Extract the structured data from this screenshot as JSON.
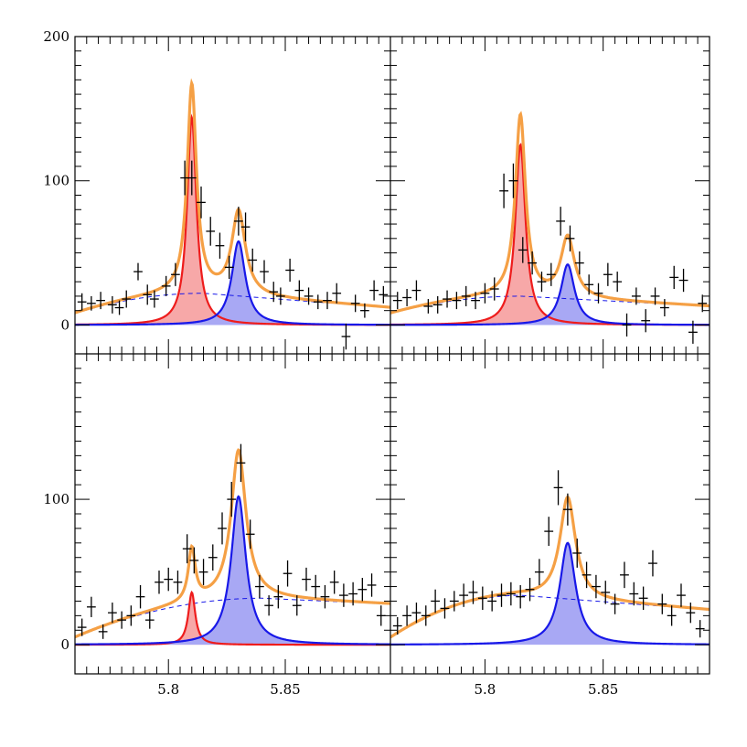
{
  "chart_data": {
    "type": "line",
    "layout": "2x2 grid of panels sharing x and y axes",
    "x_ticks": [
      5.8,
      5.85
    ],
    "x_tick_labels": [
      "5.8",
      "5.85"
    ],
    "x_range": [
      5.76,
      5.895
    ],
    "panels": [
      {
        "id": "top-left",
        "ylim": [
          -20,
          200
        ],
        "y_ticks": [
          0,
          100,
          200
        ],
        "y_tick_labels": [
          "0",
          "100",
          "200"
        ],
        "series": [
          {
            "name": "total fit",
            "color": "#f5a045"
          },
          {
            "name": "peak 1",
            "color": "#ee1c1c",
            "fill": "#f7a8a8",
            "center": 5.81,
            "width": 0.0024,
            "height": 144
          },
          {
            "name": "peak 2",
            "color": "#1818e8",
            "fill": "#a8a8f4",
            "center": 5.83,
            "width": 0.0035,
            "height": 58
          },
          {
            "name": "background",
            "color": "#1818e8",
            "style": "dashed",
            "y_at_left": 8,
            "y_peak": 22,
            "peak_x": 5.815,
            "y_at_right": 12
          }
        ],
        "data_points": [
          [
            5.763,
            16,
            6
          ],
          [
            5.767,
            15,
            5
          ],
          [
            5.771,
            17,
            6
          ],
          [
            5.776,
            14,
            6
          ],
          [
            5.779,
            12,
            5
          ],
          [
            5.782,
            18,
            6
          ],
          [
            5.787,
            37,
            6
          ],
          [
            5.791,
            21,
            7
          ],
          [
            5.794,
            18,
            6
          ],
          [
            5.799,
            27,
            7
          ],
          [
            5.803,
            35,
            8
          ],
          [
            5.807,
            102,
            12
          ],
          [
            5.81,
            102,
            12
          ],
          [
            5.814,
            85,
            11
          ],
          [
            5.818,
            65,
            10
          ],
          [
            5.822,
            55,
            9
          ],
          [
            5.826,
            40,
            8
          ],
          [
            5.83,
            72,
            10
          ],
          [
            5.833,
            68,
            10
          ],
          [
            5.836,
            45,
            8
          ],
          [
            5.841,
            37,
            8
          ],
          [
            5.845,
            23,
            7
          ],
          [
            5.848,
            20,
            6
          ],
          [
            5.852,
            38,
            8
          ],
          [
            5.856,
            24,
            7
          ],
          [
            5.86,
            20,
            6
          ],
          [
            5.864,
            16,
            5
          ],
          [
            5.868,
            17,
            6
          ],
          [
            5.872,
            22,
            7
          ],
          [
            5.876,
            -8,
            9
          ],
          [
            5.88,
            15,
            6
          ],
          [
            5.884,
            10,
            5
          ],
          [
            5.888,
            24,
            7
          ],
          [
            5.892,
            21,
            6
          ]
        ]
      },
      {
        "id": "top-right",
        "ylim": [
          -20,
          200
        ],
        "y_ticks": [
          0,
          100,
          200
        ],
        "series": [
          {
            "name": "total fit",
            "color": "#f5a045"
          },
          {
            "name": "peak 1",
            "color": "#ee1c1c",
            "fill": "#f7a8a8",
            "center": 5.815,
            "width": 0.0026,
            "height": 125
          },
          {
            "name": "peak 2",
            "color": "#1818e8",
            "fill": "#a8a8f4",
            "center": 5.835,
            "width": 0.0035,
            "height": 42
          },
          {
            "name": "background",
            "color": "#1818e8",
            "style": "dashed",
            "y_at_left": 8,
            "y_peak": 20,
            "peak_x": 5.815,
            "y_at_right": 13
          }
        ],
        "data_points": [
          [
            5.763,
            17,
            6
          ],
          [
            5.767,
            19,
            6
          ],
          [
            5.771,
            24,
            7
          ],
          [
            5.776,
            13,
            5
          ],
          [
            5.78,
            14,
            6
          ],
          [
            5.784,
            18,
            6
          ],
          [
            5.788,
            17,
            6
          ],
          [
            5.792,
            20,
            7
          ],
          [
            5.796,
            17,
            6
          ],
          [
            5.8,
            22,
            7
          ],
          [
            5.804,
            25,
            8
          ],
          [
            5.808,
            93,
            12
          ],
          [
            5.812,
            100,
            12
          ],
          [
            5.816,
            52,
            9
          ],
          [
            5.82,
            43,
            8
          ],
          [
            5.824,
            30,
            7
          ],
          [
            5.828,
            35,
            8
          ],
          [
            5.832,
            72,
            10
          ],
          [
            5.836,
            60,
            9
          ],
          [
            5.84,
            43,
            8
          ],
          [
            5.844,
            28,
            7
          ],
          [
            5.848,
            22,
            7
          ],
          [
            5.852,
            35,
            8
          ],
          [
            5.856,
            30,
            7
          ],
          [
            5.86,
            0,
            8
          ],
          [
            5.864,
            20,
            6
          ],
          [
            5.868,
            3,
            8
          ],
          [
            5.872,
            20,
            6
          ],
          [
            5.876,
            12,
            6
          ],
          [
            5.88,
            33,
            8
          ],
          [
            5.884,
            31,
            8
          ],
          [
            5.888,
            -5,
            8
          ],
          [
            5.892,
            15,
            6
          ]
        ]
      },
      {
        "id": "bottom-left",
        "ylim": [
          -20,
          200
        ],
        "y_ticks": [
          0,
          100
        ],
        "y_tick_labels": [
          "0",
          "100"
        ],
        "series": [
          {
            "name": "total fit",
            "color": "#f5a045"
          },
          {
            "name": "peak 1",
            "color": "#ee1c1c",
            "fill": "#f7a8a8",
            "center": 5.81,
            "width": 0.0018,
            "height": 36
          },
          {
            "name": "peak 2",
            "color": "#1818e8",
            "fill": "#a8a8f4",
            "center": 5.83,
            "width": 0.0038,
            "height": 102
          },
          {
            "name": "background",
            "color": "#1818e8",
            "style": "dashed",
            "y_at_left": 5,
            "y_peak": 32,
            "peak_x": 5.84,
            "y_at_right": 28
          }
        ],
        "data_points": [
          [
            5.763,
            12,
            6
          ],
          [
            5.767,
            26,
            7
          ],
          [
            5.772,
            9,
            5
          ],
          [
            5.776,
            22,
            7
          ],
          [
            5.78,
            17,
            6
          ],
          [
            5.784,
            20,
            7
          ],
          [
            5.788,
            33,
            8
          ],
          [
            5.792,
            17,
            6
          ],
          [
            5.796,
            43,
            8
          ],
          [
            5.8,
            45,
            8
          ],
          [
            5.804,
            43,
            8
          ],
          [
            5.808,
            66,
            10
          ],
          [
            5.811,
            58,
            9
          ],
          [
            5.815,
            50,
            9
          ],
          [
            5.819,
            60,
            9
          ],
          [
            5.823,
            80,
            11
          ],
          [
            5.827,
            100,
            12
          ],
          [
            5.831,
            125,
            13
          ],
          [
            5.835,
            76,
            10
          ],
          [
            5.839,
            40,
            8
          ],
          [
            5.843,
            27,
            7
          ],
          [
            5.847,
            33,
            8
          ],
          [
            5.851,
            49,
            9
          ],
          [
            5.855,
            27,
            7
          ],
          [
            5.859,
            45,
            8
          ],
          [
            5.863,
            40,
            8
          ],
          [
            5.867,
            33,
            8
          ],
          [
            5.871,
            43,
            8
          ],
          [
            5.875,
            34,
            8
          ],
          [
            5.879,
            35,
            8
          ],
          [
            5.883,
            38,
            8
          ],
          [
            5.887,
            41,
            8
          ],
          [
            5.891,
            20,
            7
          ]
        ]
      },
      {
        "id": "bottom-right",
        "ylim": [
          -20,
          200
        ],
        "y_ticks": [
          0,
          100
        ],
        "series": [
          {
            "name": "total fit",
            "color": "#f5a045"
          },
          {
            "name": "peak 2",
            "color": "#1818e8",
            "fill": "#a8a8f4",
            "center": 5.835,
            "width": 0.004,
            "height": 70
          },
          {
            "name": "background",
            "color": "#1818e8",
            "style": "dashed",
            "y_at_left": 5,
            "y_peak": 34,
            "peak_x": 5.815,
            "y_at_right": 24
          }
        ],
        "data_points": [
          [
            5.763,
            13,
            6
          ],
          [
            5.767,
            20,
            7
          ],
          [
            5.771,
            22,
            7
          ],
          [
            5.775,
            20,
            7
          ],
          [
            5.779,
            30,
            8
          ],
          [
            5.783,
            25,
            7
          ],
          [
            5.787,
            30,
            7
          ],
          [
            5.791,
            34,
            8
          ],
          [
            5.795,
            36,
            8
          ],
          [
            5.799,
            32,
            8
          ],
          [
            5.803,
            30,
            7
          ],
          [
            5.807,
            34,
            8
          ],
          [
            5.811,
            35,
            8
          ],
          [
            5.815,
            33,
            8
          ],
          [
            5.819,
            38,
            8
          ],
          [
            5.823,
            50,
            9
          ],
          [
            5.827,
            78,
            10
          ],
          [
            5.831,
            108,
            12
          ],
          [
            5.835,
            93,
            11
          ],
          [
            5.839,
            63,
            10
          ],
          [
            5.843,
            48,
            9
          ],
          [
            5.847,
            40,
            8
          ],
          [
            5.851,
            36,
            8
          ],
          [
            5.855,
            28,
            7
          ],
          [
            5.859,
            48,
            9
          ],
          [
            5.863,
            35,
            8
          ],
          [
            5.867,
            32,
            8
          ],
          [
            5.871,
            56,
            9
          ],
          [
            5.875,
            28,
            7
          ],
          [
            5.879,
            20,
            7
          ],
          [
            5.883,
            34,
            8
          ],
          [
            5.887,
            22,
            7
          ],
          [
            5.891,
            11,
            6
          ]
        ]
      }
    ]
  }
}
